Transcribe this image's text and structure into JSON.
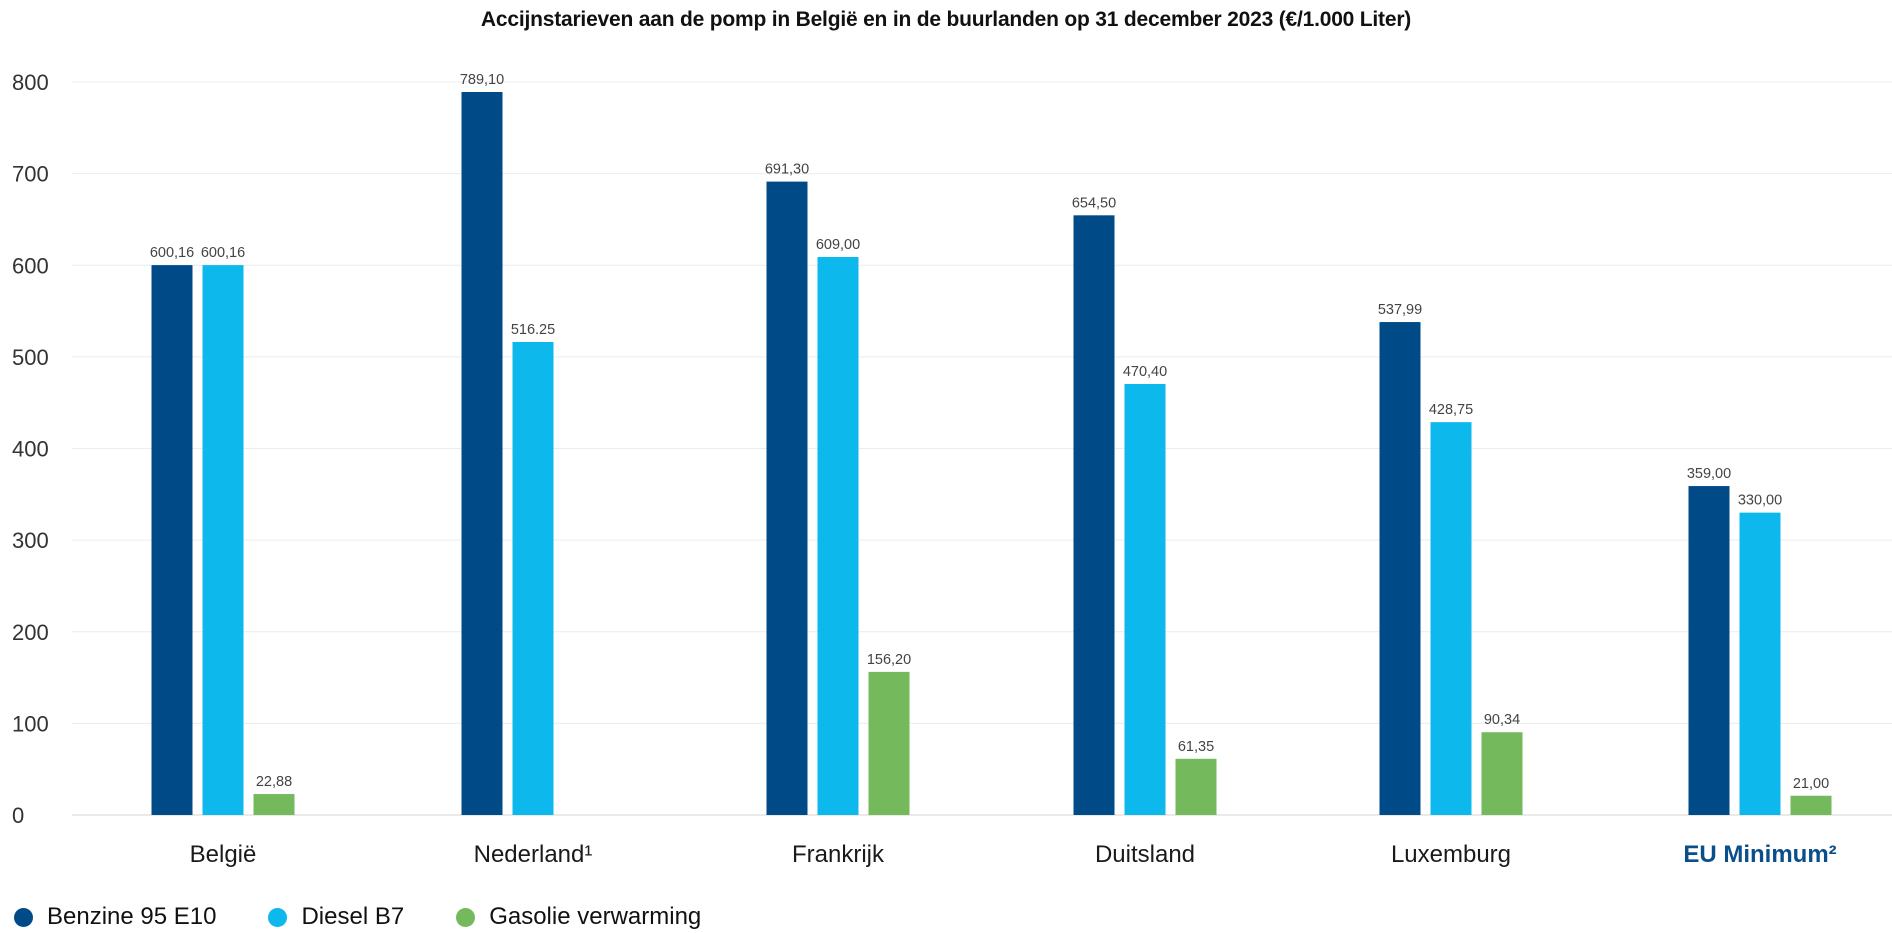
{
  "chart_data": {
    "type": "bar",
    "title": "Accijnstarieven aan de pomp in België en in de buurlanden op 31 december 2023 (€/1.000 Liter)",
    "categories": [
      "België",
      "Nederland¹",
      "Frankrijk",
      "Duitsland",
      "Luxemburg",
      "EU Minimum²"
    ],
    "highlight_category": "EU Minimum²",
    "series": [
      {
        "name": "Benzine 95 E10",
        "color": "#004b87",
        "values": [
          600.16,
          789.1,
          691.3,
          654.5,
          537.99,
          359.0
        ],
        "labels": [
          "600,16",
          "789,10",
          "691,30",
          "654,50",
          "537,99",
          "359,00"
        ]
      },
      {
        "name": "Diesel B7",
        "color": "#0db8ec",
        "values": [
          600.16,
          516.25,
          609.0,
          470.4,
          428.75,
          330.0
        ],
        "labels": [
          "600,16",
          "516.25",
          "609,00",
          "470,40",
          "428,75",
          "330,00"
        ]
      },
      {
        "name": "Gasolie verwarming",
        "color": "#74b95b",
        "values": [
          22.88,
          null,
          156.2,
          61.35,
          90.34,
          21.0
        ],
        "labels": [
          "22,88",
          null,
          "156,20",
          "61,35",
          "90,34",
          "21,00"
        ]
      }
    ],
    "y_ticks": [
      "0",
      "100",
      "200",
      "300",
      "400",
      "500",
      "600",
      "700",
      "800"
    ],
    "ylim": [
      0,
      800
    ],
    "grid": true,
    "legend_position": "bottom-left"
  }
}
